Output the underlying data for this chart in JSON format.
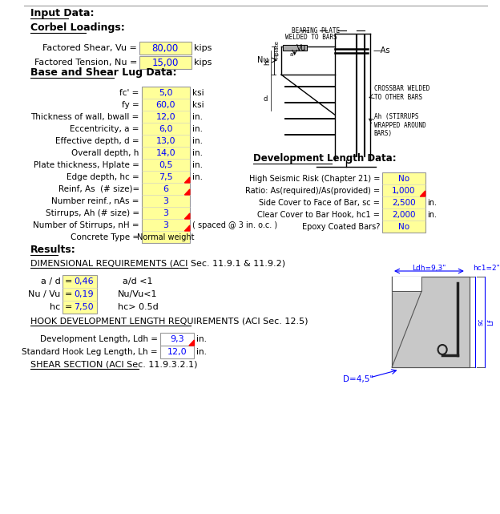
{
  "bg_color": "#ffffff",
  "yellow_bg": "#FFFF99",
  "input_data_label": "Input Data:",
  "corbel_loadings_label": "Corbel Loadings:",
  "base_shear_label": "Base and Shear Lug Data:",
  "dev_length_label": "Development Length Data:",
  "results_label": "Results:",
  "dim_req_label": "DIMENSIONAL REQUIREMENTS (ACI Sec. 11.9.1 & 11.9.2)",
  "hook_dev_label": "HOOK DEVELOPMENT LENGTH REQUIREMENTS (ACI Sec. 12.5)",
  "shear_label": "SHEAR SECTION (ACI Sec. 11.9.3.2.1)",
  "corbel_rows": [
    {
      "label": "Factored Shear, Vu =",
      "value": "80,00",
      "unit": "kips",
      "rc": false
    },
    {
      "label": "Factored Tension, Nu =",
      "value": "15,00",
      "unit": "kips",
      "rc": false
    }
  ],
  "base_rows": [
    {
      "label": "fc' =",
      "value": "5,0",
      "unit": "ksi",
      "rc": false
    },
    {
      "label": "fy =",
      "value": "60,0",
      "unit": "ksi",
      "rc": false
    },
    {
      "label": "Thickness of wall, bwall =",
      "value": "12,0",
      "unit": "in.",
      "rc": false
    },
    {
      "label": "Eccentricity, a =",
      "value": "6,0",
      "unit": "in.",
      "rc": false
    },
    {
      "label": "Effective depth, d =",
      "value": "13,0",
      "unit": "in.",
      "rc": false
    },
    {
      "label": "Overall depth, h",
      "value": "14,0",
      "unit": "in.",
      "rc": false
    },
    {
      "label": "Plate thickness, Hplate =",
      "value": "0,5",
      "unit": "in.",
      "rc": false
    },
    {
      "label": "Edge depth, hc =",
      "value": "7,5",
      "unit": "in.",
      "rc": true
    },
    {
      "label": "Reinf, As  (# size)=",
      "value": "6",
      "unit": "",
      "rc": true
    },
    {
      "label": "Number reinf., nAs =",
      "value": "3",
      "unit": "",
      "rc": false
    },
    {
      "label": "Stirrups, Ah (# size) =",
      "value": "3",
      "unit": "",
      "rc": true
    },
    {
      "label": "Number of Stirrups, nH =",
      "value": "3",
      "unit": "( spaced @ 3 in. o.c. )",
      "rc": true
    },
    {
      "label": "Concrete Type =",
      "value": "Normal weight",
      "unit": "",
      "rc": false
    }
  ],
  "dev_rows": [
    {
      "label": "High Seismic Risk (Chapter 21) =",
      "value": "No",
      "unit": "",
      "rc": false
    },
    {
      "label": "Ratio: As(required)/As(provided) =",
      "value": "1,000",
      "unit": "",
      "rc": true
    },
    {
      "label": "Side Cover to Face of Bar, sc =",
      "value": "2,500",
      "unit": "in.",
      "rc": false
    },
    {
      "label": "Clear Cover to Bar Hook, hc1 =",
      "value": "2,000",
      "unit": "in.",
      "rc": false
    },
    {
      "label": "Epoxy Coated Bars?",
      "value": "No",
      "unit": "",
      "rc": false
    }
  ],
  "dim_rows": [
    {
      "label": "a / d",
      "value": "0,46",
      "check": "a/d <1"
    },
    {
      "label": "Nu / Vu",
      "value": "0,19",
      "check": "Nu/Vu<1"
    },
    {
      "label": "hc",
      "value": "7,50",
      "check": "hc> 0.5d"
    }
  ],
  "hook_rows": [
    {
      "label": "Development Length, Ldh =",
      "value": "9,3",
      "unit": "in.",
      "rc": true
    },
    {
      "label": "Standard Hook Leg Length, Lh =",
      "value": "12,0",
      "unit": "in.",
      "rc": false
    }
  ]
}
